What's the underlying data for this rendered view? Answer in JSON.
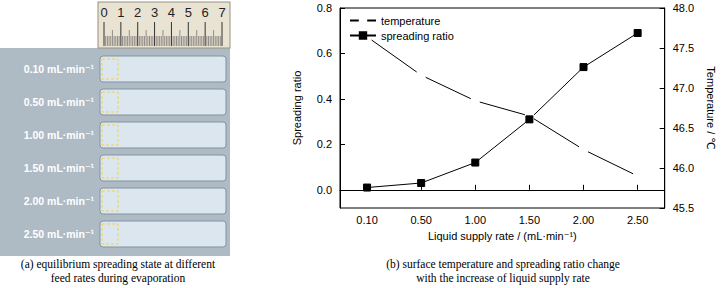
{
  "panel_a": {
    "ruler_labels": [
      "0",
      "1",
      "2",
      "3",
      "4",
      "5",
      "6",
      "7"
    ],
    "rows": [
      "0.10 mL·min⁻¹",
      "0.50 mL·min⁻¹",
      "1.00 mL·min⁻¹",
      "1.50 mL·min⁻¹",
      "2.00 mL·min⁻¹",
      "2.50 mL·min⁻¹"
    ],
    "caption": [
      "(a) equilibrium spreading state at different",
      "feed rates during evaporation"
    ]
  },
  "chart_data": {
    "type": "line",
    "caption": [
      "(b) surface temperature and spreading ratio change",
      "with the increase of liquid supply rate"
    ],
    "x_label": "Liquid supply rate / (mL·min⁻¹)",
    "y_label": "Spreading ratio",
    "y2_label": "Temperature / ℃",
    "categories": [
      "0.10",
      "0.50",
      "1.00",
      "1.50",
      "2.00",
      "2.50"
    ],
    "series": [
      {
        "name": "temperature",
        "color": "#000000",
        "marker": "open square",
        "axis": "y2",
        "values": [
          47.64,
          47.16,
          46.84,
          46.65,
          46.23,
          45.9
        ]
      },
      {
        "name": "spreading ratio",
        "color": "#000000",
        "marker": "square",
        "values": [
          0.01,
          0.03,
          0.12,
          0.31,
          0.54,
          0.69
        ]
      }
    ],
    "ylim": [
      -0.08,
      0.8
    ],
    "yticks": [
      {
        "value": 0,
        "label": "0.0"
      },
      0.2,
      0.4,
      0.6,
      0.8
    ],
    "y2lim": [
      45.5,
      48
    ],
    "y2ticks": [
      45.5,
      {
        "value": 46,
        "label": "46.0"
      },
      46.5,
      {
        "value": 47,
        "label": "47.0"
      },
      47.5,
      {
        "value": 48,
        "label": "48.0"
      }
    ],
    "legend": "upper left",
    "grid": false
  }
}
